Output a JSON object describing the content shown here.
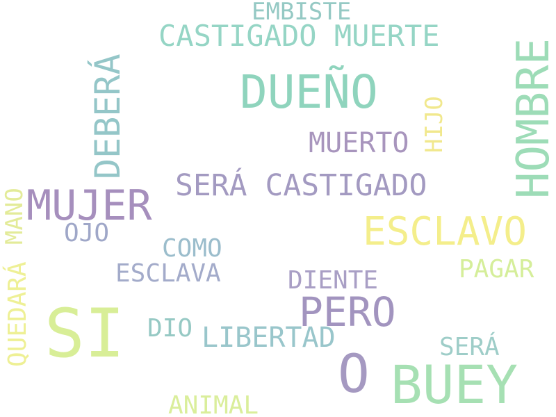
{
  "word_cloud": {
    "background": "#ffffff",
    "words": [
      {
        "id": "embiste",
        "text": "EMBISTE",
        "color": "#95c9c4",
        "orientation": "horizontal"
      },
      {
        "id": "castigado",
        "text": "CASTIGADO MUERTE",
        "color": "#95d5c5",
        "orientation": "horizontal"
      },
      {
        "id": "dueno",
        "text": "DUEÑO",
        "color": "#8fd4bd",
        "orientation": "horizontal"
      },
      {
        "id": "muerto",
        "text": "MUERTO",
        "color": "#a895bd",
        "orientation": "horizontal"
      },
      {
        "id": "hijo",
        "text": "HIJO",
        "color": "#f1e88d",
        "orientation": "vertical"
      },
      {
        "id": "hombre",
        "text": "HOMBRE",
        "color": "#9ddcb7",
        "orientation": "vertical"
      },
      {
        "id": "debera",
        "text": "DEBERÁ",
        "color": "#94c6c8",
        "orientation": "vertical"
      },
      {
        "id": "sera_cast",
        "text": "SERÁ CASTIGADO",
        "color": "#a39ac1",
        "orientation": "horizontal"
      },
      {
        "id": "mujer",
        "text": "MUJER",
        "color": "#a68fbd",
        "orientation": "horizontal"
      },
      {
        "id": "ojo",
        "text": "OJO",
        "color": "#9fa7c8",
        "orientation": "horizontal"
      },
      {
        "id": "esclavo",
        "text": "ESCLAVO",
        "color": "#f4ee8b",
        "orientation": "horizontal"
      },
      {
        "id": "mano",
        "text": "MANO",
        "color": "#e3eb99",
        "orientation": "vertical"
      },
      {
        "id": "como",
        "text": "COMO",
        "color": "#9bbdcc",
        "orientation": "horizontal"
      },
      {
        "id": "pagar",
        "text": "PAGAR",
        "color": "#d5ee9a",
        "orientation": "horizontal"
      },
      {
        "id": "esclava",
        "text": "ESCLAVA",
        "color": "#a3abca",
        "orientation": "horizontal"
      },
      {
        "id": "diente",
        "text": "DIENTE",
        "color": "#a99fc5",
        "orientation": "horizontal"
      },
      {
        "id": "pero",
        "text": "PERO",
        "color": "#a294bf",
        "orientation": "horizontal"
      },
      {
        "id": "quedara",
        "text": "QUEDARÁ",
        "color": "#eef095",
        "orientation": "vertical"
      },
      {
        "id": "si",
        "text": "SI",
        "color": "#d8ee97",
        "orientation": "horizontal"
      },
      {
        "id": "dio",
        "text": "DIO",
        "color": "#96c9c4",
        "orientation": "horizontal"
      },
      {
        "id": "libertad",
        "text": "LIBERTAD",
        "color": "#99c6cb",
        "orientation": "horizontal"
      },
      {
        "id": "sera",
        "text": "SERÁ",
        "color": "#9ecdc8",
        "orientation": "horizontal"
      },
      {
        "id": "o",
        "text": "O",
        "color": "#a599c1",
        "orientation": "horizontal"
      },
      {
        "id": "buey",
        "text": "BUEY",
        "color": "#a6e0b3",
        "orientation": "horizontal"
      },
      {
        "id": "animal",
        "text": "ANIMAL",
        "color": "#daee9b",
        "orientation": "horizontal"
      }
    ]
  }
}
